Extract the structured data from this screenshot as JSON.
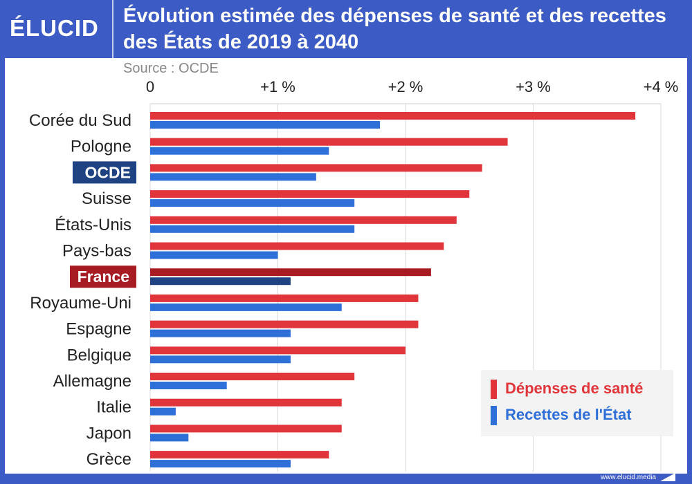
{
  "header": {
    "logo": "ÉLUCID",
    "title": "Évolution estimée des dépenses de santé et des recettes des États de 2019 à 2040",
    "source": "Source : OCDE"
  },
  "footer": {
    "url": "www.elucid.media"
  },
  "colors": {
    "frame": "#3d5bc4",
    "red": "#e0353a",
    "blue": "#2f6fd8",
    "red_highlight": "#a61c22",
    "blue_highlight": "#1f4283",
    "ocde_label_bg": "#1f4283",
    "france_label_bg": "#a61c22"
  },
  "chart_data": {
    "type": "bar",
    "orientation": "horizontal",
    "categories": [
      "Corée du Sud",
      "Pologne",
      "OCDE",
      "Suisse",
      "États-Unis",
      "Pays-bas",
      "France",
      "Royaume-Uni",
      "Espagne",
      "Belgique",
      "Allemagne",
      "Italie",
      "Japon",
      "Grèce"
    ],
    "highlighted": [
      "OCDE",
      "France"
    ],
    "series": [
      {
        "name": "Dépenses de santé",
        "values": [
          3.8,
          2.8,
          2.6,
          2.5,
          2.4,
          2.3,
          2.2,
          2.1,
          2.1,
          2.0,
          1.6,
          1.5,
          1.5,
          1.4
        ]
      },
      {
        "name": "Recettes de l'État",
        "values": [
          1.8,
          1.4,
          1.3,
          1.6,
          1.6,
          1.0,
          1.1,
          1.5,
          1.1,
          1.1,
          0.6,
          0.2,
          0.3,
          1.1
        ]
      }
    ],
    "xlim": [
      0,
      4
    ],
    "ticks": [
      0,
      1,
      2,
      3,
      4
    ],
    "tick_labels": [
      "0",
      "+1 %",
      "+2 %",
      "+3 %",
      "+4 %"
    ],
    "axis_position": "top",
    "grid": true,
    "legend": "bottom-right"
  }
}
